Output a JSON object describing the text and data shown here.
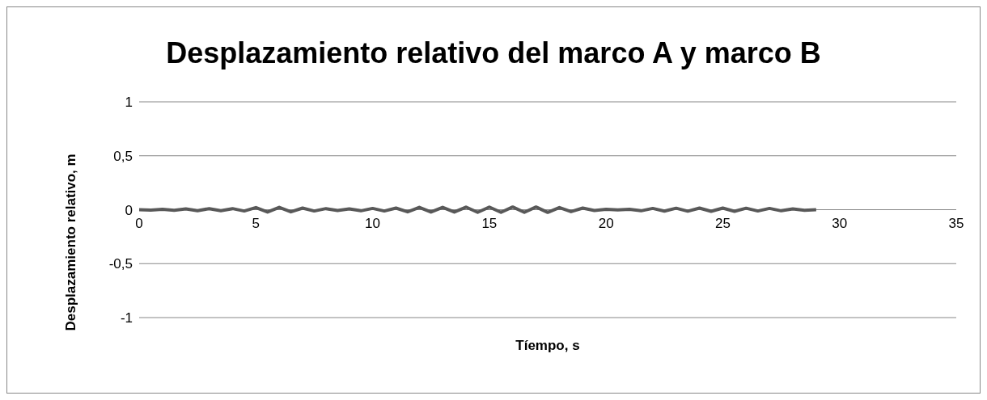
{
  "chart_data": {
    "type": "line",
    "title": "Desplazamiento relativo del marco A y marco B",
    "xlabel": "Tíempo, s",
    "ylabel": "Desplazamiento relativo, m",
    "x": [
      0,
      0.5,
      1,
      1.5,
      2,
      2.5,
      3,
      3.5,
      4,
      4.5,
      5,
      5.5,
      6,
      6.5,
      7,
      7.5,
      8,
      8.5,
      9,
      9.5,
      10,
      10.5,
      11,
      11.5,
      12,
      12.5,
      13,
      13.5,
      14,
      14.5,
      15,
      15.5,
      16,
      16.5,
      17,
      17.5,
      18,
      18.5,
      19,
      19.5,
      20,
      20.5,
      21,
      21.5,
      22,
      22.5,
      23,
      23.5,
      24,
      24.5,
      25,
      25.5,
      26,
      26.5,
      27,
      27.5,
      28,
      28.5,
      29
    ],
    "series": [
      {
        "color": "#595959",
        "values": [
          0,
          -0.003,
          0.003,
          -0.006,
          0.008,
          -0.01,
          0.01,
          -0.01,
          0.01,
          -0.012,
          0.02,
          -0.022,
          0.022,
          -0.02,
          0.015,
          -0.012,
          0.01,
          -0.008,
          0.008,
          -0.01,
          0.012,
          -0.012,
          0.015,
          -0.02,
          0.022,
          -0.022,
          0.022,
          -0.022,
          0.024,
          -0.024,
          0.024,
          -0.024,
          0.025,
          -0.024,
          0.025,
          -0.025,
          0.02,
          -0.018,
          0.015,
          -0.008,
          0.003,
          -0.002,
          0.004,
          -0.01,
          0.012,
          -0.013,
          0.014,
          -0.014,
          0.015,
          -0.015,
          0.015,
          -0.015,
          0.014,
          -0.012,
          0.012,
          -0.01,
          0.008,
          -0.005,
          0
        ]
      }
    ],
    "xlim": [
      0,
      35
    ],
    "xticks": [
      0,
      5,
      10,
      15,
      20,
      25,
      30,
      35
    ],
    "ylim": [
      -1,
      1
    ],
    "yticks": [
      -1,
      {
        "value": -0.5,
        "label": "-0,5"
      },
      0,
      {
        "value": 0.5,
        "label": "0,5"
      },
      1
    ],
    "grid": "y",
    "legend": false,
    "marker": "none",
    "line_style": "solid"
  }
}
